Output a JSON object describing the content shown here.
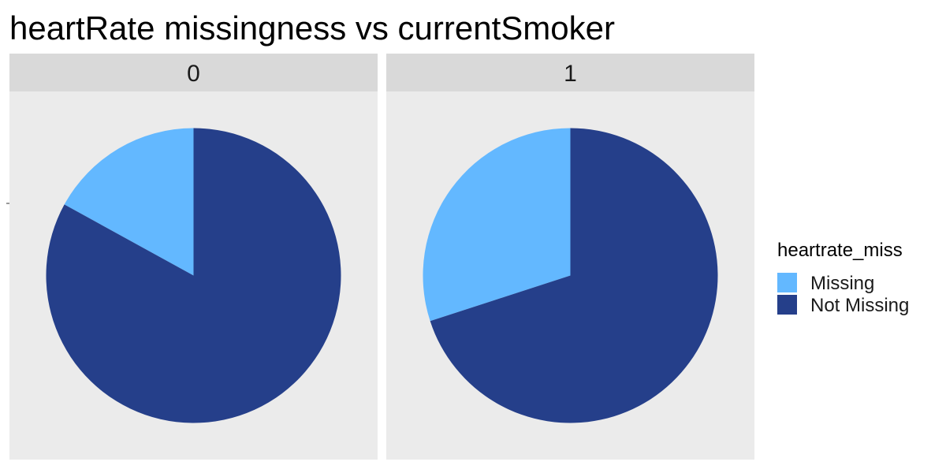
{
  "chart_data": {
    "type": "pie",
    "title": "heartRate missingness vs currentSmoker",
    "facet_variable": "currentSmoker",
    "legend": {
      "title": "heartrate_miss",
      "placement": "right",
      "entries": [
        {
          "label": "Missing",
          "color": "#63B8FF"
        },
        {
          "label": "Not Missing",
          "color": "#253F8A"
        }
      ]
    },
    "facets": [
      {
        "label": "0",
        "slices": [
          {
            "name": "Missing",
            "value": 0.17
          },
          {
            "name": "Not Missing",
            "value": 0.83
          }
        ]
      },
      {
        "label": "1",
        "slices": [
          {
            "name": "Missing",
            "value": 0.3
          },
          {
            "name": "Not Missing",
            "value": 0.7
          }
        ]
      }
    ],
    "colors": {
      "panel_background": "#EBEBEB",
      "strip_background": "#D9D9D9",
      "text": "#1A1A1A"
    }
  }
}
